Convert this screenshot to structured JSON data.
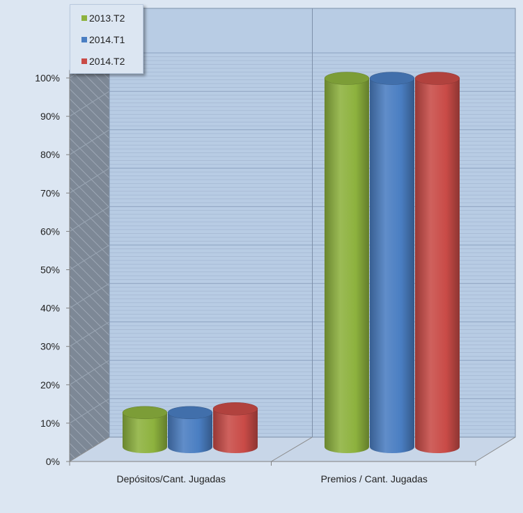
{
  "chart_data": {
    "type": "bar",
    "style": "3d-cylinder",
    "categories": [
      "Depósitos/Cant. Jugadas",
      "Premios / Cant. Jugadas"
    ],
    "series": [
      {
        "name": "2013.T2",
        "color": "#8db23e",
        "values": [
          0.1,
          0.97
        ]
      },
      {
        "name": "2014.T1",
        "color": "#4a7ec2",
        "values": [
          0.1,
          0.97
        ]
      },
      {
        "name": "2014.T2",
        "color": "#c94b47",
        "values": [
          0.11,
          0.97
        ]
      }
    ],
    "yticks": [
      "0%",
      "10%",
      "20%",
      "30%",
      "40%",
      "50%",
      "60%",
      "70%",
      "80%",
      "90%",
      "100%"
    ],
    "ylim": [
      0,
      1
    ],
    "grid": true,
    "legend": "top-left",
    "colors": {
      "background": "#dce6f2",
      "plot_wall": "#b8cce4",
      "gridline": "#8da2bf",
      "side_wall": "#7d8896",
      "axis": "#808080"
    }
  }
}
